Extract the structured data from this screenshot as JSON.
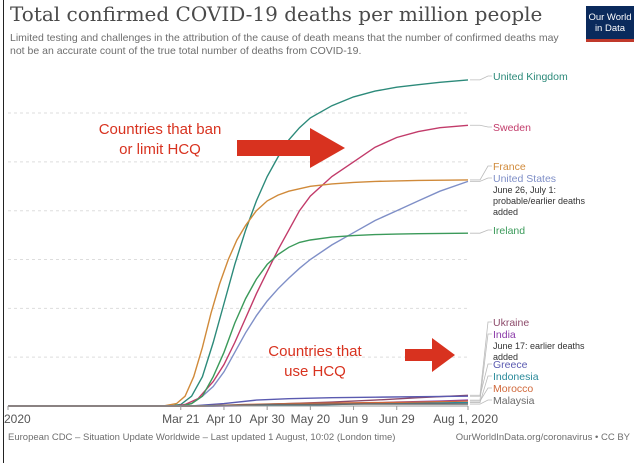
{
  "header": {
    "title": "Total confirmed COVID-19 deaths per million people",
    "subtitle": "Limited testing and challenges in the attribution of the cause of death means that the number of confirmed deaths may not be an accurate count of the true total number of deaths from COVID-19.",
    "logo_line1": "Our World",
    "logo_line2": "in Data"
  },
  "footer": {
    "source": "European CDC – Situation Update Worldwide – Last updated 1 August, 10:02 (London time)",
    "credit": "OurWorldInData.org/coronavirus • CC BY"
  },
  "annotations": {
    "ban_label": "Countries that ban\nor limit HCQ",
    "use_label": "Countries that\nuse HCQ"
  },
  "colors": {
    "arrow": "#d8321f",
    "grid": "#dddddd"
  },
  "chart_data": {
    "type": "line",
    "title": "Total confirmed COVID-19 deaths per million people",
    "x_tick_labels": [
      "2020",
      "Mar 21",
      "Apr 10",
      "Apr 30",
      "May 20",
      "Jun 9",
      "Jun 29",
      "Aug 1, 2020"
    ],
    "x_tick_days": [
      0,
      80,
      100,
      120,
      140,
      160,
      180,
      213
    ],
    "xlim": [
      0,
      213
    ],
    "ylim": [
      0,
      680
    ],
    "grid": "horizontal-dashed",
    "y_tick_labels": "hidden",
    "legend": "right-side line labels",
    "series": [
      {
        "name": "United Kingdom",
        "color": "#2c8a7a",
        "points": [
          [
            0,
            0
          ],
          [
            75,
            0
          ],
          [
            80,
            3
          ],
          [
            85,
            20
          ],
          [
            90,
            60
          ],
          [
            95,
            130
          ],
          [
            100,
            210
          ],
          [
            105,
            290
          ],
          [
            110,
            360
          ],
          [
            115,
            420
          ],
          [
            120,
            470
          ],
          [
            125,
            510
          ],
          [
            130,
            545
          ],
          [
            135,
            570
          ],
          [
            140,
            590
          ],
          [
            150,
            615
          ],
          [
            160,
            633
          ],
          [
            170,
            645
          ],
          [
            180,
            653
          ],
          [
            190,
            658
          ],
          [
            200,
            663
          ],
          [
            213,
            668
          ]
        ]
      },
      {
        "name": "Sweden",
        "color": "#c23b6a",
        "points": [
          [
            0,
            0
          ],
          [
            78,
            0
          ],
          [
            82,
            3
          ],
          [
            88,
            15
          ],
          [
            95,
            50
          ],
          [
            100,
            85
          ],
          [
            105,
            130
          ],
          [
            110,
            180
          ],
          [
            115,
            230
          ],
          [
            120,
            275
          ],
          [
            125,
            320
          ],
          [
            130,
            360
          ],
          [
            135,
            400
          ],
          [
            140,
            430
          ],
          [
            150,
            470
          ],
          [
            160,
            500
          ],
          [
            170,
            530
          ],
          [
            180,
            550
          ],
          [
            190,
            562
          ],
          [
            200,
            570
          ],
          [
            213,
            575
          ]
        ]
      },
      {
        "name": "France",
        "color": "#d08a3a",
        "points": [
          [
            0,
            0
          ],
          [
            72,
            0
          ],
          [
            78,
            5
          ],
          [
            82,
            20
          ],
          [
            86,
            60
          ],
          [
            90,
            120
          ],
          [
            94,
            190
          ],
          [
            98,
            250
          ],
          [
            102,
            300
          ],
          [
            106,
            340
          ],
          [
            110,
            370
          ],
          [
            115,
            400
          ],
          [
            120,
            420
          ],
          [
            125,
            432
          ],
          [
            130,
            440
          ],
          [
            140,
            450
          ],
          [
            150,
            455
          ],
          [
            160,
            458
          ],
          [
            170,
            460
          ],
          [
            180,
            461
          ],
          [
            190,
            462
          ],
          [
            213,
            463
          ]
        ]
      },
      {
        "name": "United States",
        "color": "#7f8fc7",
        "points": [
          [
            0,
            0
          ],
          [
            80,
            0
          ],
          [
            85,
            5
          ],
          [
            90,
            20
          ],
          [
            95,
            40
          ],
          [
            100,
            70
          ],
          [
            105,
            110
          ],
          [
            110,
            150
          ],
          [
            115,
            185
          ],
          [
            120,
            215
          ],
          [
            125,
            240
          ],
          [
            130,
            262
          ],
          [
            135,
            282
          ],
          [
            140,
            300
          ],
          [
            150,
            330
          ],
          [
            160,
            355
          ],
          [
            170,
            380
          ],
          [
            180,
            400
          ],
          [
            190,
            420
          ],
          [
            200,
            440
          ],
          [
            213,
            460
          ]
        ],
        "note": "June 26, July 1: probable/earlier deaths added"
      },
      {
        "name": "Ireland",
        "color": "#3b9a5a",
        "points": [
          [
            0,
            0
          ],
          [
            80,
            0
          ],
          [
            85,
            5
          ],
          [
            90,
            20
          ],
          [
            95,
            60
          ],
          [
            100,
            110
          ],
          [
            105,
            170
          ],
          [
            110,
            220
          ],
          [
            115,
            260
          ],
          [
            120,
            290
          ],
          [
            125,
            310
          ],
          [
            130,
            325
          ],
          [
            135,
            335
          ],
          [
            140,
            340
          ],
          [
            150,
            346
          ],
          [
            160,
            349
          ],
          [
            170,
            351
          ],
          [
            180,
            352
          ],
          [
            190,
            353
          ],
          [
            213,
            354
          ]
        ]
      },
      {
        "name": "Ukraine",
        "color": "#8c4a6a",
        "points": [
          [
            0,
            0
          ],
          [
            95,
            0
          ],
          [
            110,
            2
          ],
          [
            130,
            5
          ],
          [
            150,
            8
          ],
          [
            170,
            12
          ],
          [
            190,
            17
          ],
          [
            213,
            22
          ]
        ]
      },
      {
        "name": "India",
        "color": "#8a3aa8",
        "points": [
          [
            0,
            0
          ],
          [
            100,
            0
          ],
          [
            120,
            1
          ],
          [
            140,
            2
          ],
          [
            160,
            5
          ],
          [
            180,
            8
          ],
          [
            200,
            10
          ],
          [
            213,
            12
          ]
        ],
        "note": "June 17: earlier deaths added"
      },
      {
        "name": "Greece",
        "color": "#5a5ab0",
        "points": [
          [
            0,
            0
          ],
          [
            85,
            0
          ],
          [
            100,
            5
          ],
          [
            115,
            12
          ],
          [
            130,
            15
          ],
          [
            150,
            17
          ],
          [
            170,
            18
          ],
          [
            190,
            19
          ],
          [
            213,
            20
          ]
        ]
      },
      {
        "name": "Indonesia",
        "color": "#2a8a9a",
        "points": [
          [
            0,
            0
          ],
          [
            90,
            0
          ],
          [
            110,
            1
          ],
          [
            130,
            2
          ],
          [
            150,
            3
          ],
          [
            170,
            5
          ],
          [
            190,
            6
          ],
          [
            213,
            7
          ]
        ]
      },
      {
        "name": "Morocco",
        "color": "#d0683a",
        "points": [
          [
            0,
            0
          ],
          [
            90,
            0
          ],
          [
            110,
            3
          ],
          [
            130,
            5
          ],
          [
            150,
            6
          ],
          [
            170,
            7
          ],
          [
            190,
            8
          ],
          [
            213,
            10
          ]
        ]
      },
      {
        "name": "Malaysia",
        "color": "#6a6a6a",
        "points": [
          [
            0,
            0
          ],
          [
            80,
            0
          ],
          [
            100,
            1
          ],
          [
            120,
            3
          ],
          [
            140,
            3
          ],
          [
            160,
            4
          ],
          [
            180,
            4
          ],
          [
            213,
            4
          ]
        ]
      }
    ]
  }
}
